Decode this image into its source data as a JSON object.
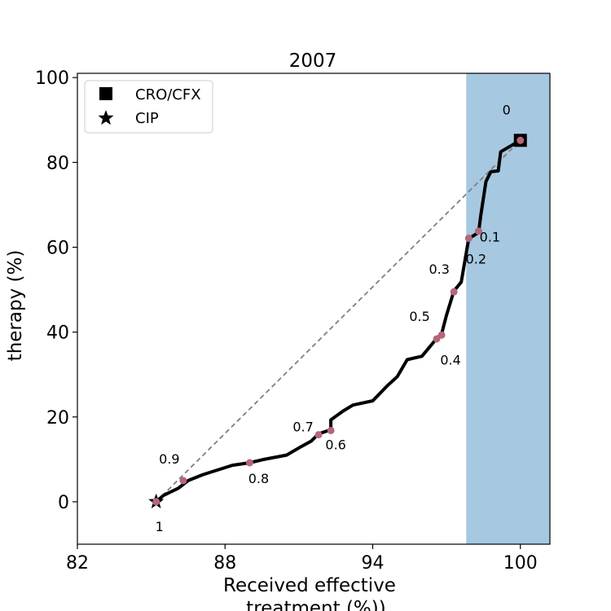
{
  "chart_data": {
    "type": "line",
    "title": "2007",
    "xlabel_line1": "Received effective",
    "xlabel_line2": "treatment (%))",
    "ylabel": "therapy (%)",
    "xlim": [
      82,
      101.2
    ],
    "ylim": [
      -10,
      101
    ],
    "xticks": [
      82,
      88,
      94,
      100
    ],
    "yticks": [
      0,
      20,
      40,
      60,
      80,
      100
    ],
    "shaded_region": {
      "x_from": 97.8,
      "x_to": 101.2,
      "color": "#a6c8e0"
    },
    "frontier_curve": {
      "color": "#000000",
      "points": [
        [
          85.2,
          0
        ],
        [
          85.5,
          1.5
        ],
        [
          86.1,
          3.2
        ],
        [
          86.5,
          5
        ],
        [
          87.1,
          6.4
        ],
        [
          88.3,
          8.6
        ],
        [
          89.0,
          9.2
        ],
        [
          89.5,
          9.9
        ],
        [
          90.5,
          11
        ],
        [
          91.0,
          12.7
        ],
        [
          91.5,
          14.3
        ],
        [
          91.8,
          16
        ],
        [
          92.3,
          17
        ],
        [
          92.3,
          19.3
        ],
        [
          92.8,
          21.4
        ],
        [
          93.2,
          22.8
        ],
        [
          94.0,
          23.8
        ],
        [
          94.6,
          27.4
        ],
        [
          95.0,
          29.5
        ],
        [
          95.4,
          33.5
        ],
        [
          96.0,
          34.3
        ],
        [
          96.6,
          38.5
        ],
        [
          96.8,
          39.6
        ],
        [
          97.0,
          44
        ],
        [
          97.3,
          49.7
        ],
        [
          97.6,
          51.8
        ],
        [
          97.9,
          62
        ],
        [
          98.3,
          63.5
        ],
        [
          98.4,
          67.8
        ],
        [
          98.6,
          75.5
        ],
        [
          98.8,
          77.8
        ],
        [
          99.1,
          78
        ],
        [
          99.2,
          82.5
        ],
        [
          100.0,
          85.2
        ]
      ]
    },
    "threshold_points": {
      "color": "#b5677a",
      "points": [
        {
          "label": "0",
          "x": 100.0,
          "y": 85.2
        },
        {
          "label": "0.1",
          "x": 98.3,
          "y": 63.8
        },
        {
          "label": "0.2",
          "x": 97.9,
          "y": 62.1
        },
        {
          "label": "0.3",
          "x": 97.3,
          "y": 49.5
        },
        {
          "label": "0.4",
          "x": 96.8,
          "y": 39.3
        },
        {
          "label": "0.5",
          "x": 96.6,
          "y": 38.4
        },
        {
          "label": "0.6",
          "x": 92.3,
          "y": 16.8
        },
        {
          "label": "0.7",
          "x": 91.8,
          "y": 15.8
        },
        {
          "label": "0.8",
          "x": 89.0,
          "y": 9.2
        },
        {
          "label": "0.9",
          "x": 86.3,
          "y": 5.0
        },
        {
          "label": "1",
          "x": 85.2,
          "y": 0.0
        }
      ]
    },
    "reference_line": {
      "from": [
        85.2,
        0
      ],
      "to": [
        100.0,
        85.2
      ],
      "color": "#808080",
      "style": "dashed"
    },
    "markers": [
      {
        "name": "CRO/CFX",
        "shape": "square",
        "x": 100.0,
        "y": 85.2
      },
      {
        "name": "CIP",
        "shape": "star",
        "x": 85.2,
        "y": 0.0
      }
    ],
    "legend": {
      "placement": "top-left",
      "entries": [
        {
          "label": "CRO/CFX",
          "shape": "square"
        },
        {
          "label": "CIP",
          "shape": "star"
        }
      ]
    }
  }
}
